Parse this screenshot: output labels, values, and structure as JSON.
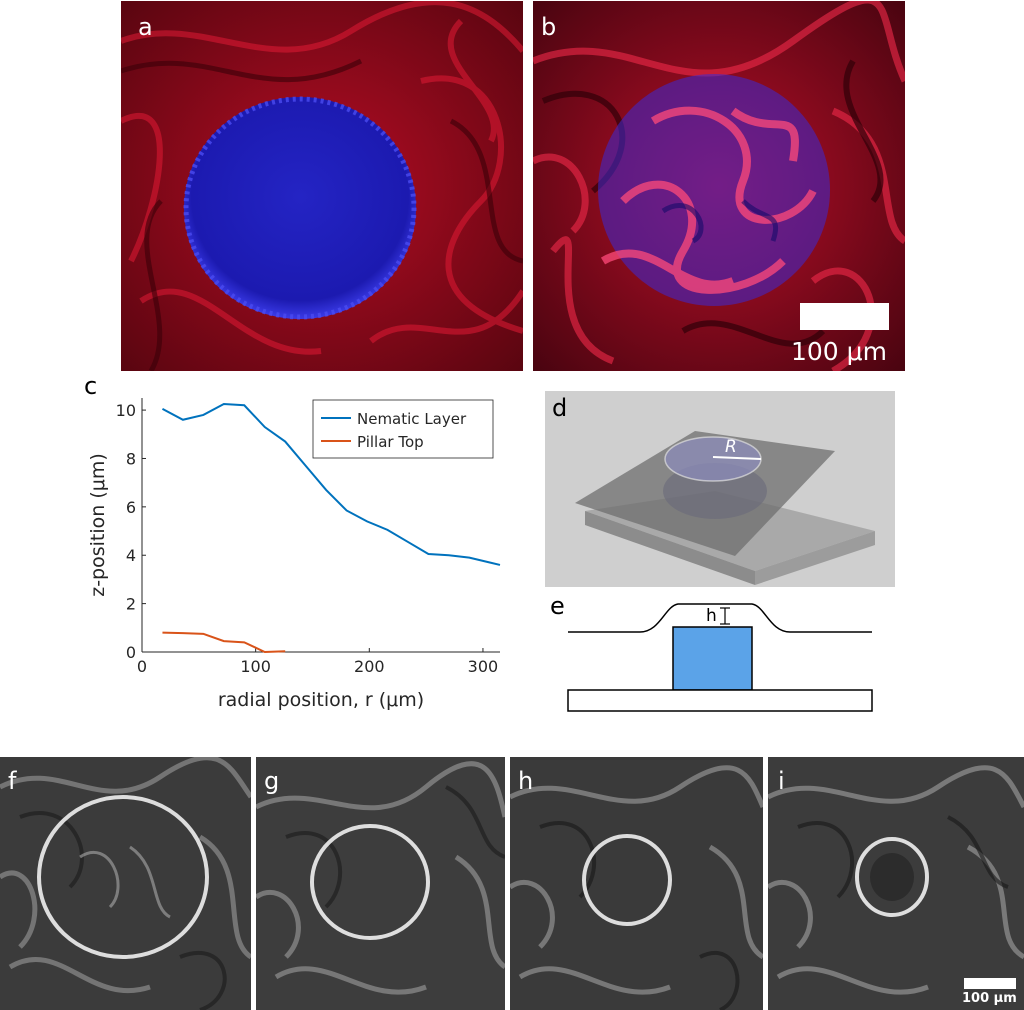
{
  "panels": {
    "a": {
      "label": "a"
    },
    "b": {
      "label": "b",
      "scalebar_text": "100 μm"
    },
    "c": {
      "label": "c"
    },
    "d": {
      "label": "d",
      "radius_label": "R"
    },
    "e": {
      "label": "e",
      "height_label": "h"
    },
    "f": {
      "label": "f"
    },
    "g": {
      "label": "g"
    },
    "h": {
      "label": "h"
    },
    "i": {
      "label": "i",
      "scalebar_text": "100 μm"
    }
  },
  "colors": {
    "nematic": "#0072BD",
    "pillar": "#D95319",
    "pillar_fill": "#5BA3E8",
    "fluor_red": "#d1102b",
    "fluor_blue": "#2a2ad8"
  },
  "chart_data": {
    "type": "line",
    "title": "",
    "xlabel": "radial position, r (μm)",
    "ylabel": "z-position (μm)",
    "xlim": [
      0,
      315
    ],
    "ylim": [
      0,
      10.5
    ],
    "xticks": [
      0,
      100,
      200,
      300
    ],
    "yticks": [
      0,
      2,
      4,
      6,
      8,
      10
    ],
    "legend_position": "top-right",
    "series": [
      {
        "name": "Nematic Layer",
        "color": "#0072BD",
        "x": [
          18,
          36,
          54,
          72,
          90,
          108,
          126,
          144,
          162,
          180,
          198,
          216,
          234,
          252,
          270,
          288,
          306,
          315
        ],
        "y": [
          10.05,
          9.6,
          9.8,
          10.25,
          10.2,
          9.3,
          8.7,
          7.7,
          6.7,
          5.85,
          5.4,
          5.05,
          4.55,
          4.05,
          4.0,
          3.9,
          3.7,
          3.6
        ]
      },
      {
        "name": "Pillar Top",
        "color": "#D95319",
        "x": [
          18,
          36,
          54,
          72,
          90,
          108,
          126
        ],
        "y": [
          0.8,
          0.78,
          0.75,
          0.45,
          0.4,
          0.0,
          0.03
        ]
      }
    ]
  }
}
